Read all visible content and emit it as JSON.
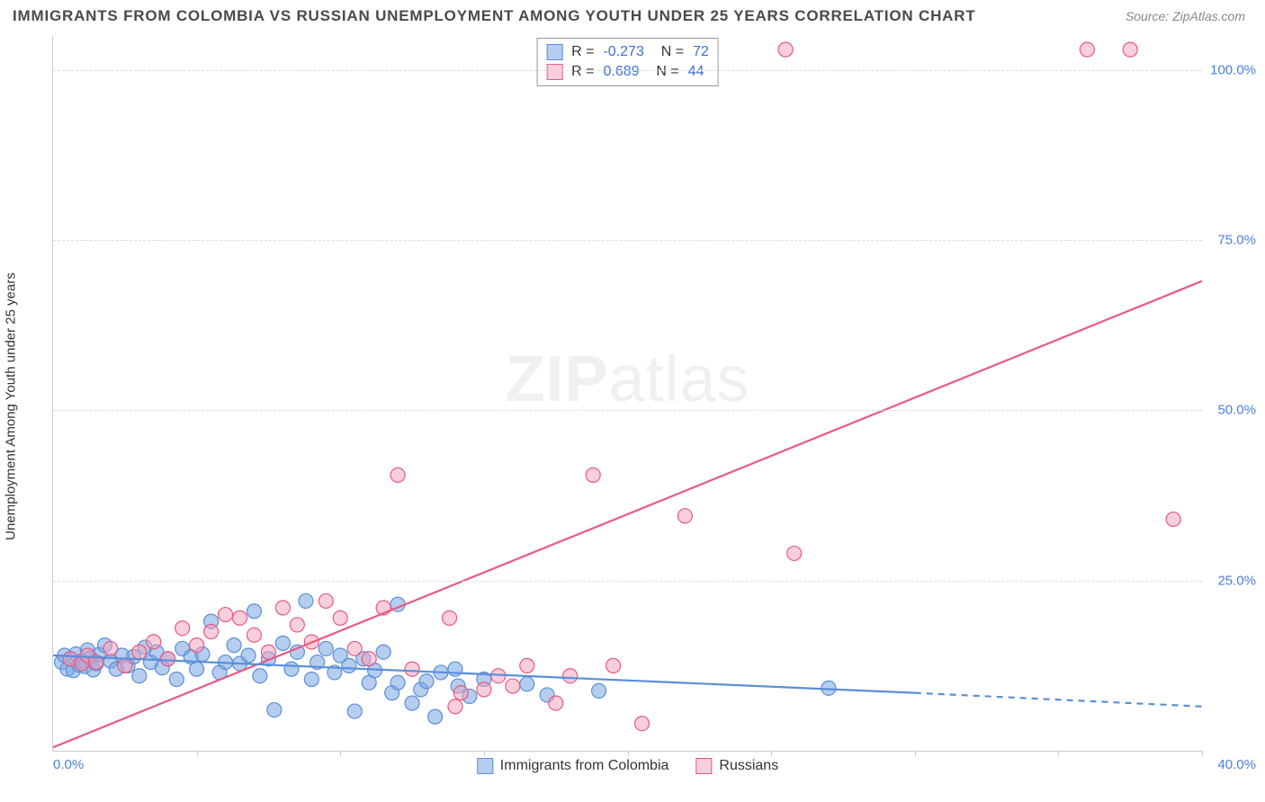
{
  "header": {
    "title": "IMMIGRANTS FROM COLOMBIA VS RUSSIAN UNEMPLOYMENT AMONG YOUTH UNDER 25 YEARS CORRELATION CHART",
    "source": "Source: ZipAtlas.com"
  },
  "ylabel": "Unemployment Among Youth under 25 years",
  "watermark_bold": "ZIP",
  "watermark_light": "atlas",
  "axes": {
    "xlim": [
      0,
      40
    ],
    "ylim": [
      0,
      105
    ],
    "xticks": [
      5,
      10,
      15,
      20,
      25,
      30,
      35,
      40
    ],
    "yticks": [
      25,
      50,
      75,
      100
    ],
    "ytick_labels": [
      "25.0%",
      "50.0%",
      "75.0%",
      "100.0%"
    ],
    "x_left_label": "0.0%",
    "x_right_label": "40.0%"
  },
  "series": {
    "colombia": {
      "label": "Immigrants from Colombia",
      "stroke": "#5a8fd8",
      "fill": "rgba(120,165,225,0.55)",
      "border": "#5a8fd8",
      "R": "-0.273",
      "N": "72",
      "points": [
        [
          0.3,
          13
        ],
        [
          0.4,
          14
        ],
        [
          0.5,
          12
        ],
        [
          0.6,
          13.5
        ],
        [
          0.7,
          11.8
        ],
        [
          0.8,
          14.2
        ],
        [
          0.9,
          12.6
        ],
        [
          1.0,
          13.2
        ],
        [
          1.1,
          12.4
        ],
        [
          1.2,
          14.8
        ],
        [
          1.3,
          13.6
        ],
        [
          1.4,
          11.9
        ],
        [
          1.5,
          12.8
        ],
        [
          1.6,
          14.1
        ],
        [
          1.8,
          15.5
        ],
        [
          2.0,
          13.2
        ],
        [
          2.2,
          12.0
        ],
        [
          2.4,
          14.0
        ],
        [
          2.6,
          12.5
        ],
        [
          2.8,
          13.8
        ],
        [
          3.0,
          11.0
        ],
        [
          3.2,
          15.2
        ],
        [
          3.4,
          13.0
        ],
        [
          3.6,
          14.5
        ],
        [
          3.8,
          12.2
        ],
        [
          4.0,
          13.5
        ],
        [
          4.3,
          10.5
        ],
        [
          4.5,
          15.0
        ],
        [
          4.8,
          13.8
        ],
        [
          5.0,
          12.0
        ],
        [
          5.2,
          14.2
        ],
        [
          5.5,
          19.0
        ],
        [
          5.8,
          11.5
        ],
        [
          6.0,
          13.0
        ],
        [
          6.3,
          15.5
        ],
        [
          6.5,
          12.8
        ],
        [
          6.8,
          14.0
        ],
        [
          7.0,
          20.5
        ],
        [
          7.2,
          11.0
        ],
        [
          7.5,
          13.5
        ],
        [
          7.7,
          6.0
        ],
        [
          8.0,
          15.8
        ],
        [
          8.3,
          12.0
        ],
        [
          8.5,
          14.5
        ],
        [
          8.8,
          22.0
        ],
        [
          9.0,
          10.5
        ],
        [
          9.2,
          13.0
        ],
        [
          9.5,
          15.0
        ],
        [
          9.8,
          11.5
        ],
        [
          10.0,
          14.0
        ],
        [
          10.3,
          12.5
        ],
        [
          10.5,
          5.8
        ],
        [
          10.8,
          13.5
        ],
        [
          11.0,
          10.0
        ],
        [
          11.2,
          11.8
        ],
        [
          11.5,
          14.5
        ],
        [
          11.8,
          8.5
        ],
        [
          12.0,
          21.5
        ],
        [
          12.0,
          10.0
        ],
        [
          12.5,
          7.0
        ],
        [
          12.8,
          9.0
        ],
        [
          13.0,
          10.2
        ],
        [
          13.3,
          5.0
        ],
        [
          13.5,
          11.5
        ],
        [
          14.0,
          12.0
        ],
        [
          14.1,
          9.5
        ],
        [
          14.5,
          8.0
        ],
        [
          15.0,
          10.5
        ],
        [
          16.5,
          9.8
        ],
        [
          17.2,
          8.2
        ],
        [
          19.0,
          8.8
        ],
        [
          27.0,
          9.2
        ]
      ],
      "trend": {
        "x1": 0,
        "y1": 14.0,
        "x2": 30,
        "y2": 8.5,
        "dash_x2": 40,
        "dash_y2": 6.5
      }
    },
    "russians": {
      "label": "Russians",
      "stroke": "#e85a82",
      "fill": "rgba(245,160,185,0.5)",
      "border": "#e85a82",
      "R": "0.689",
      "N": "44",
      "points": [
        [
          0.6,
          13.5
        ],
        [
          1.0,
          12.8
        ],
        [
          1.2,
          14.0
        ],
        [
          1.5,
          13.0
        ],
        [
          2.0,
          15.0
        ],
        [
          2.5,
          12.5
        ],
        [
          3.0,
          14.5
        ],
        [
          3.5,
          16.0
        ],
        [
          4.0,
          13.5
        ],
        [
          4.5,
          18.0
        ],
        [
          5.0,
          15.5
        ],
        [
          5.5,
          17.5
        ],
        [
          6.0,
          20.0
        ],
        [
          6.5,
          19.5
        ],
        [
          7.0,
          17.0
        ],
        [
          7.5,
          14.5
        ],
        [
          8.0,
          21.0
        ],
        [
          8.5,
          18.5
        ],
        [
          9.0,
          16.0
        ],
        [
          9.5,
          22.0
        ],
        [
          10.0,
          19.5
        ],
        [
          10.5,
          15.0
        ],
        [
          11.0,
          13.5
        ],
        [
          11.5,
          21.0
        ],
        [
          12.0,
          40.5
        ],
        [
          12.5,
          12.0
        ],
        [
          13.8,
          19.5
        ],
        [
          14.0,
          6.5
        ],
        [
          14.2,
          8.5
        ],
        [
          15.0,
          9.0
        ],
        [
          15.5,
          11.0
        ],
        [
          16.0,
          9.5
        ],
        [
          16.5,
          12.5
        ],
        [
          17.5,
          7.0
        ],
        [
          18.0,
          11.0
        ],
        [
          18.8,
          40.5
        ],
        [
          19.5,
          12.5
        ],
        [
          20.5,
          4.0
        ],
        [
          22.0,
          34.5
        ],
        [
          25.5,
          103
        ],
        [
          25.8,
          29.0
        ],
        [
          36.0,
          103
        ],
        [
          37.5,
          103
        ],
        [
          39.0,
          34.0
        ]
      ],
      "trend": {
        "x1": 0,
        "y1": 0.5,
        "x2": 40,
        "y2": 69
      }
    }
  },
  "marker_radius": 8
}
